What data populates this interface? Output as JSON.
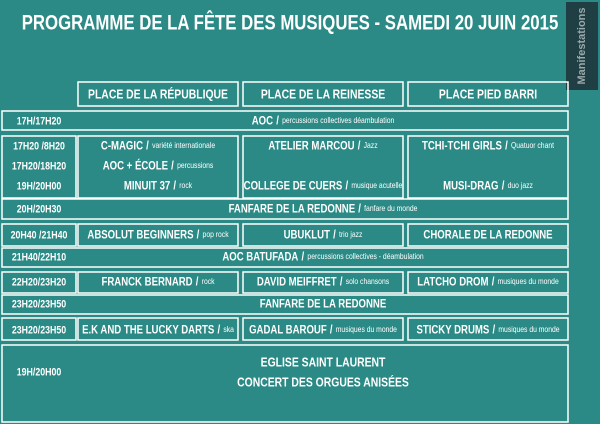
{
  "title": "PROGRAMME DE LA FÊTE DES MUSIQUES - SAMEDI 20 JUIN 2015",
  "badge": "Manifestations",
  "separator": "/",
  "venues": [
    "PLACE DE LA RÉPUBLIQUE",
    "PLACE DE LA REINESSE",
    "PLACE PIED BARRI"
  ],
  "rows": [
    {
      "time": "17H/17H20",
      "all": {
        "name": "AOC",
        "genre": "percussions collectives déambulation"
      }
    },
    {
      "time": "17H20 /8H20",
      "cells": [
        {
          "name": "C-MAGIC",
          "genre": "variété internationale"
        },
        {
          "name": "ATELIER MARCOU",
          "genre": "Jazz"
        },
        {
          "name": "TCHI-TCHI GIRLS",
          "genre": "Quatuor chant"
        }
      ]
    },
    {
      "time": "17H20/18H20",
      "cells": [
        {
          "name": "AOC + ÉCOLE",
          "genre": "percussions"
        }
      ]
    },
    {
      "time": "19H/20H00",
      "cells": [
        {
          "name": "MINUIT 37",
          "genre": "rock"
        },
        {
          "name": "COLLEGE DE CUERS",
          "genre": "musique acutelle"
        },
        {
          "name": "MUSI-DRAG",
          "genre": "duo jazz"
        }
      ]
    },
    {
      "time": "20H/20H30",
      "all": {
        "name": "FANFARE DE LA REDONNE",
        "genre": "fanfare du monde"
      }
    },
    {
      "time": "20H40 /21H40",
      "cells": [
        {
          "name": "ABSOLUT BEGINNERS",
          "genre": "pop rock"
        },
        {
          "name": "UBUKLUT",
          "genre": "trio jazz"
        },
        {
          "name": "CHORALE DE LA REDONNE"
        }
      ]
    },
    {
      "time": "21H40/22H10",
      "all": {
        "name": "AOC BATUFADA",
        "genre": "percussions collectives - déambulation"
      }
    },
    {
      "time": "22H20/23H20",
      "cells": [
        {
          "name": "FRANCK BERNARD",
          "genre": "rock"
        },
        {
          "name": "DAVID MEIFFRET",
          "genre": "solo chansons"
        },
        {
          "name": "LATCHO DROM",
          "genre": "musiques du monde"
        }
      ]
    },
    {
      "time": "23H20/23H50",
      "all": {
        "name": "FANFARE DE LA REDONNE"
      }
    },
    {
      "time": "23H20/23H50",
      "cells": [
        {
          "name": "E.K AND THE LUCKY DARTS",
          "genre": "ska"
        },
        {
          "name": "GADAL BAROUF",
          "genre": "musiques du monde"
        },
        {
          "name": "STICKY DRUMS",
          "genre": "musiques du monde"
        }
      ]
    },
    {
      "time": "19H/20H00",
      "all": {
        "lines": [
          "EGLISE SAINT LAURENT",
          "CONCERT DES ORGUES ANISÉES"
        ]
      }
    }
  ]
}
